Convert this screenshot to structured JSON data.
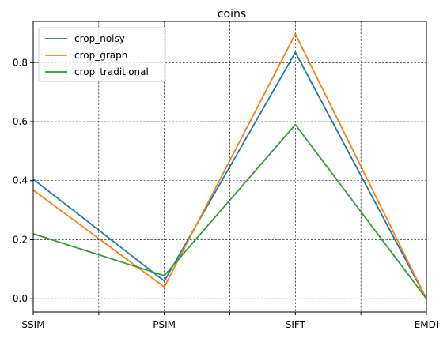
{
  "colors": {
    "crop_noisy": "#1f77b4",
    "crop_graph": "#ff7f0e",
    "crop_traditional": "#2ca02c",
    "grid": "#000000",
    "axes": "#000000"
  },
  "chart_data": {
    "type": "line",
    "title": "coins",
    "xlabel": "",
    "ylabel": "",
    "categories": [
      "SSIM",
      "PSIM",
      "SIFT",
      "EMDI"
    ],
    "x_minor_ticks": [
      0.5,
      1.5,
      2.5
    ],
    "yticks": [
      "0.0",
      "0.2",
      "0.4",
      "0.6",
      "0.8"
    ],
    "ytick_values": [
      0.0,
      0.2,
      0.4,
      0.6,
      0.8
    ],
    "ylim": [
      -0.045,
      0.94
    ],
    "grid": true,
    "grid_style": "dashed",
    "legend_position": "top-left",
    "series": [
      {
        "name": "crop_noisy",
        "values": [
          0.405,
          0.06,
          0.835,
          0.0
        ]
      },
      {
        "name": "crop_graph",
        "values": [
          0.368,
          0.04,
          0.897,
          0.0
        ]
      },
      {
        "name": "crop_traditional",
        "values": [
          0.22,
          0.078,
          0.59,
          0.0
        ]
      }
    ]
  }
}
